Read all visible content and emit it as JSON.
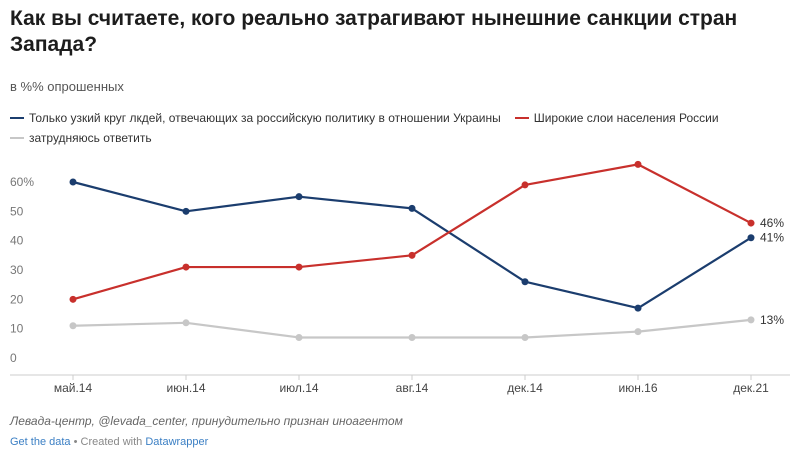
{
  "title": "Как вы считаете, кого реально затрагивают нынешние санкции стран Запада?",
  "subtitle": "в %% опрошенных",
  "footer": {
    "source": "Левада-центр, @levada_center, принудительно признан иноагентом",
    "get_data": "Get the data",
    "separator": " • ",
    "created_with": "Created with ",
    "datawrapper": "Datawrapper"
  },
  "colors": {
    "series1": "#1b3d6e",
    "series2": "#c8302c",
    "series3": "#c7c7c7",
    "grid": "#e6e6e6",
    "axis": "#cccccc"
  },
  "chart_data": {
    "type": "line",
    "categories": [
      "май.14",
      "июн.14",
      "июл.14",
      "авг.14",
      "дек.14",
      "июн.16",
      "дек.21"
    ],
    "y_ticks": [
      "60%",
      "50",
      "40",
      "30",
      "20",
      "10",
      "0"
    ],
    "y_tick_values": [
      60,
      50,
      40,
      30,
      20,
      10,
      0
    ],
    "ylim": [
      0,
      60
    ],
    "grid": false,
    "legend_position": "top",
    "series": [
      {
        "name": "Только узкий круг лкдей, отвечающих за российскую политику в отношении Украины",
        "values": [
          60,
          50,
          55,
          51,
          26,
          17,
          41
        ],
        "end_label": "41%"
      },
      {
        "name": "Широкие слои населения России",
        "values": [
          20,
          31,
          31,
          35,
          59,
          66,
          46
        ],
        "end_label": "46%"
      },
      {
        "name": "затрудняюсь ответить",
        "values": [
          11,
          12,
          7,
          7,
          7,
          9,
          13
        ],
        "end_label": "13%"
      }
    ]
  }
}
